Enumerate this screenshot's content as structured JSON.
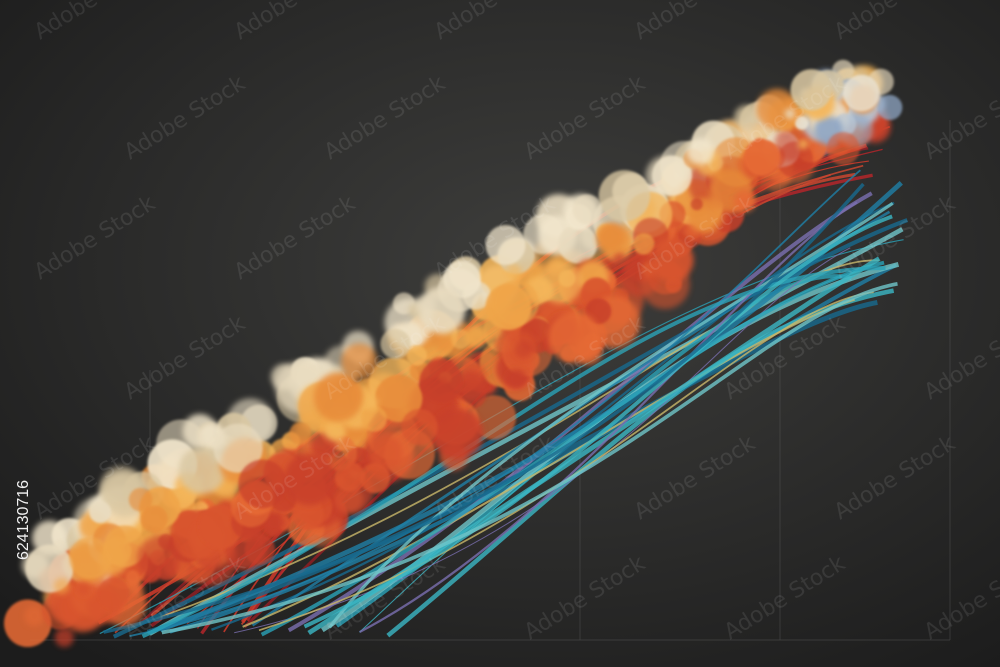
{
  "image": {
    "stock_id": "624130716",
    "watermark": "Adobe Stock"
  }
}
